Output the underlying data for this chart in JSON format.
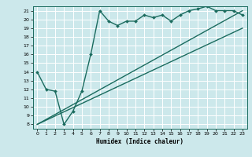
{
  "xlabel": "Humidex (Indice chaleur)",
  "ylabel": "",
  "bg_color": "#cce8eb",
  "grid_color": "#ffffff",
  "line_color": "#1a6b5e",
  "xlim": [
    -0.5,
    23.5
  ],
  "ylim": [
    7.5,
    21.5
  ],
  "xticks": [
    0,
    1,
    2,
    3,
    4,
    5,
    6,
    7,
    8,
    9,
    10,
    11,
    12,
    13,
    14,
    15,
    16,
    17,
    18,
    19,
    20,
    21,
    22,
    23
  ],
  "yticks": [
    8,
    9,
    10,
    11,
    12,
    13,
    14,
    15,
    16,
    17,
    18,
    19,
    20,
    21
  ],
  "series": [
    {
      "x": [
        0,
        1,
        2,
        3,
        4,
        5,
        6,
        7,
        8,
        9,
        10,
        11,
        12,
        13,
        14,
        15,
        16,
        17,
        18,
        19,
        20,
        21,
        22,
        23
      ],
      "y": [
        14,
        12,
        11.8,
        8,
        9.5,
        11.8,
        16,
        21,
        19.8,
        19.3,
        19.8,
        19.8,
        20.5,
        20.2,
        20.5,
        19.8,
        20.5,
        21,
        21.2,
        21.5,
        21.0,
        21.0,
        21.0,
        20.5
      ],
      "marker": "D",
      "linewidth": 1.0,
      "markersize": 2.0
    },
    {
      "x": [
        0,
        23
      ],
      "y": [
        8,
        21
      ],
      "marker": null,
      "linewidth": 1.0,
      "markersize": 0
    },
    {
      "x": [
        0,
        23
      ],
      "y": [
        8,
        19
      ],
      "marker": null,
      "linewidth": 1.0,
      "markersize": 0
    }
  ]
}
